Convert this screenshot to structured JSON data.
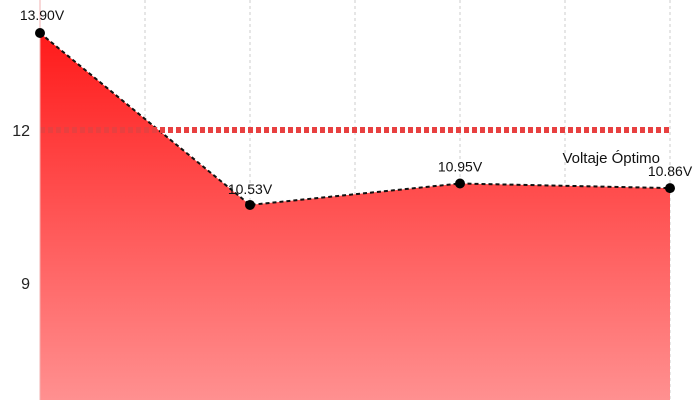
{
  "chart_data": {
    "type": "area",
    "title": "",
    "xlabel": "",
    "ylabel": "",
    "ylim": [
      6.5,
      14.3
    ],
    "yticks": [
      {
        "value": 12,
        "label": "12"
      },
      {
        "value": 9,
        "label": "9"
      }
    ],
    "x_gridlines": 6,
    "grid": true,
    "series": [
      {
        "points": [
          {
            "x": 0,
            "y": 13.9,
            "label": "13.90V"
          },
          {
            "x": 2,
            "y": 10.53,
            "label": "10.53V"
          },
          {
            "x": 4,
            "y": 10.95,
            "label": "10.95V"
          },
          {
            "x": 6,
            "y": 10.86,
            "label": "10.86V"
          }
        ]
      }
    ],
    "reference_line": {
      "value": 12,
      "label": "Voltaje Óptimo",
      "color": "#e84040"
    },
    "colors": {
      "fill_top": "#ff1a1a",
      "fill_bottom": "#ff9090",
      "line": "#111111",
      "point": "#000000",
      "grid": "#cccccc"
    }
  }
}
